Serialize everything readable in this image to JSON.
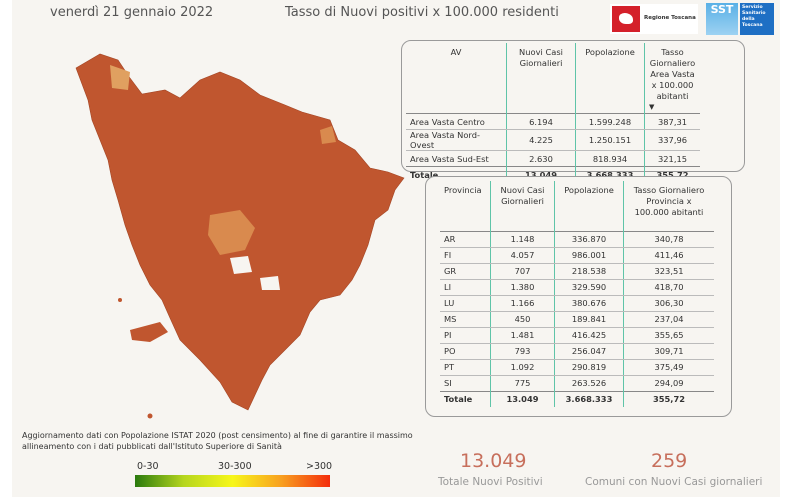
{
  "header": {
    "date": "venerdì 21 gennaio 2022",
    "title": "Tasso di Nuovi positivi x 100.000 residenti",
    "logo_regione": "Regione Toscana",
    "logo_sst": "SST",
    "logo_sst_text": "Servizio Sanitario della Toscana"
  },
  "av_table": {
    "headers": [
      "AV",
      "Nuovi Casi Giornalieri",
      "Popolazione",
      "Tasso Giornaliero Area Vasta x 100.000 abitanti"
    ],
    "rows": [
      [
        "Area Vasta Centro",
        "6.194",
        "1.599.248",
        "387,31"
      ],
      [
        "Area Vasta Nord-Ovest",
        "4.225",
        "1.250.151",
        "337,96"
      ],
      [
        "Area Vasta Sud-Est",
        "2.630",
        "818.934",
        "321,15"
      ]
    ],
    "total": [
      "Totale",
      "13.049",
      "3.668.333",
      "355,72"
    ]
  },
  "prov_table": {
    "headers": [
      "Provincia",
      "Nuovi Casi Giornalieri",
      "Popolazione",
      "Tasso Giornaliero Provincia x 100.000 abitanti"
    ],
    "rows": [
      [
        "AR",
        "1.148",
        "336.870",
        "340,78"
      ],
      [
        "FI",
        "4.057",
        "986.001",
        "411,46"
      ],
      [
        "GR",
        "707",
        "218.538",
        "323,51"
      ],
      [
        "LI",
        "1.380",
        "329.590",
        "418,70"
      ],
      [
        "LU",
        "1.166",
        "380.676",
        "306,30"
      ],
      [
        "MS",
        "450",
        "189.841",
        "237,04"
      ],
      [
        "PI",
        "1.481",
        "416.425",
        "355,65"
      ],
      [
        "PO",
        "793",
        "256.047",
        "309,71"
      ],
      [
        "PT",
        "1.092",
        "290.819",
        "375,49"
      ],
      [
        "SI",
        "775",
        "263.526",
        "294,09"
      ]
    ],
    "total": [
      "Totale",
      "13.049",
      "3.668.333",
      "355,72"
    ]
  },
  "note": "Aggiornamento dati con Popolazione ISTAT 2020 (post censimento) al fine di garantire il massimo allineamento con i dati pubblicati dall'Istituto Superiore di Sanità",
  "legend": {
    "labels": [
      "0-30",
      "30-300",
      ">300"
    ],
    "colors": [
      "#2a7a0e",
      "#f7f71a",
      "#f42d0c"
    ]
  },
  "kpis": [
    {
      "value": "13.049",
      "label": "Totale Nuovi Positivi"
    },
    {
      "value": "259",
      "label": "Comuni con Nuovi Casi giornalieri"
    }
  ],
  "colors": {
    "map_fill": "#c0562f",
    "accent": "#5fc4a8",
    "kpi": "#c76f5c"
  }
}
